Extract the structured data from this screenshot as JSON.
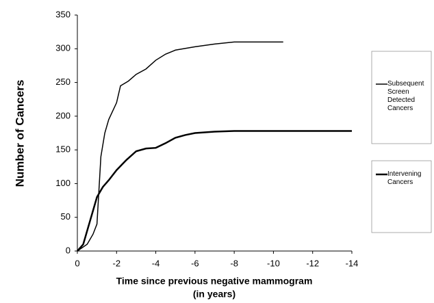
{
  "chart_data": {
    "type": "line",
    "ylabel": "Number of Cancers",
    "xlabel": [
      "Time since previous negative mammogram",
      "(in years)"
    ],
    "xlim": [
      0,
      -14
    ],
    "xticks": [
      0,
      -2,
      -4,
      -6,
      -8,
      -10,
      -12,
      -14
    ],
    "ylim": [
      0,
      350
    ],
    "yticks": [
      0,
      50,
      100,
      150,
      200,
      250,
      300,
      350
    ],
    "legend": "right",
    "series": [
      {
        "name": "Subsequent Screen Detected Cancers",
        "color": "#000000",
        "width": 1.5,
        "x": [
          0,
          -0.5,
          -0.8,
          -1,
          -1.1,
          -1.2,
          -1.4,
          -1.6,
          -2,
          -2.2,
          -2.6,
          -3,
          -3.5,
          -4,
          -4.5,
          -5,
          -6,
          -7,
          -8,
          -10.5
        ],
        "values": [
          0,
          10,
          25,
          40,
          90,
          140,
          175,
          195,
          220,
          245,
          252,
          262,
          270,
          283,
          292,
          298,
          303,
          307,
          310,
          310
        ]
      },
      {
        "name": "Intervening Cancers",
        "color": "#000000",
        "width": 2.5,
        "x": [
          0,
          -0.3,
          -0.6,
          -0.8,
          -1,
          -1.3,
          -1.6,
          -2,
          -2.5,
          -3,
          -3.5,
          -4,
          -4.5,
          -5,
          -5.5,
          -6,
          -7,
          -8,
          -14
        ],
        "values": [
          0,
          10,
          40,
          60,
          80,
          95,
          105,
          120,
          135,
          148,
          152,
          153,
          160,
          168,
          172,
          175,
          177,
          178,
          178
        ]
      }
    ]
  }
}
